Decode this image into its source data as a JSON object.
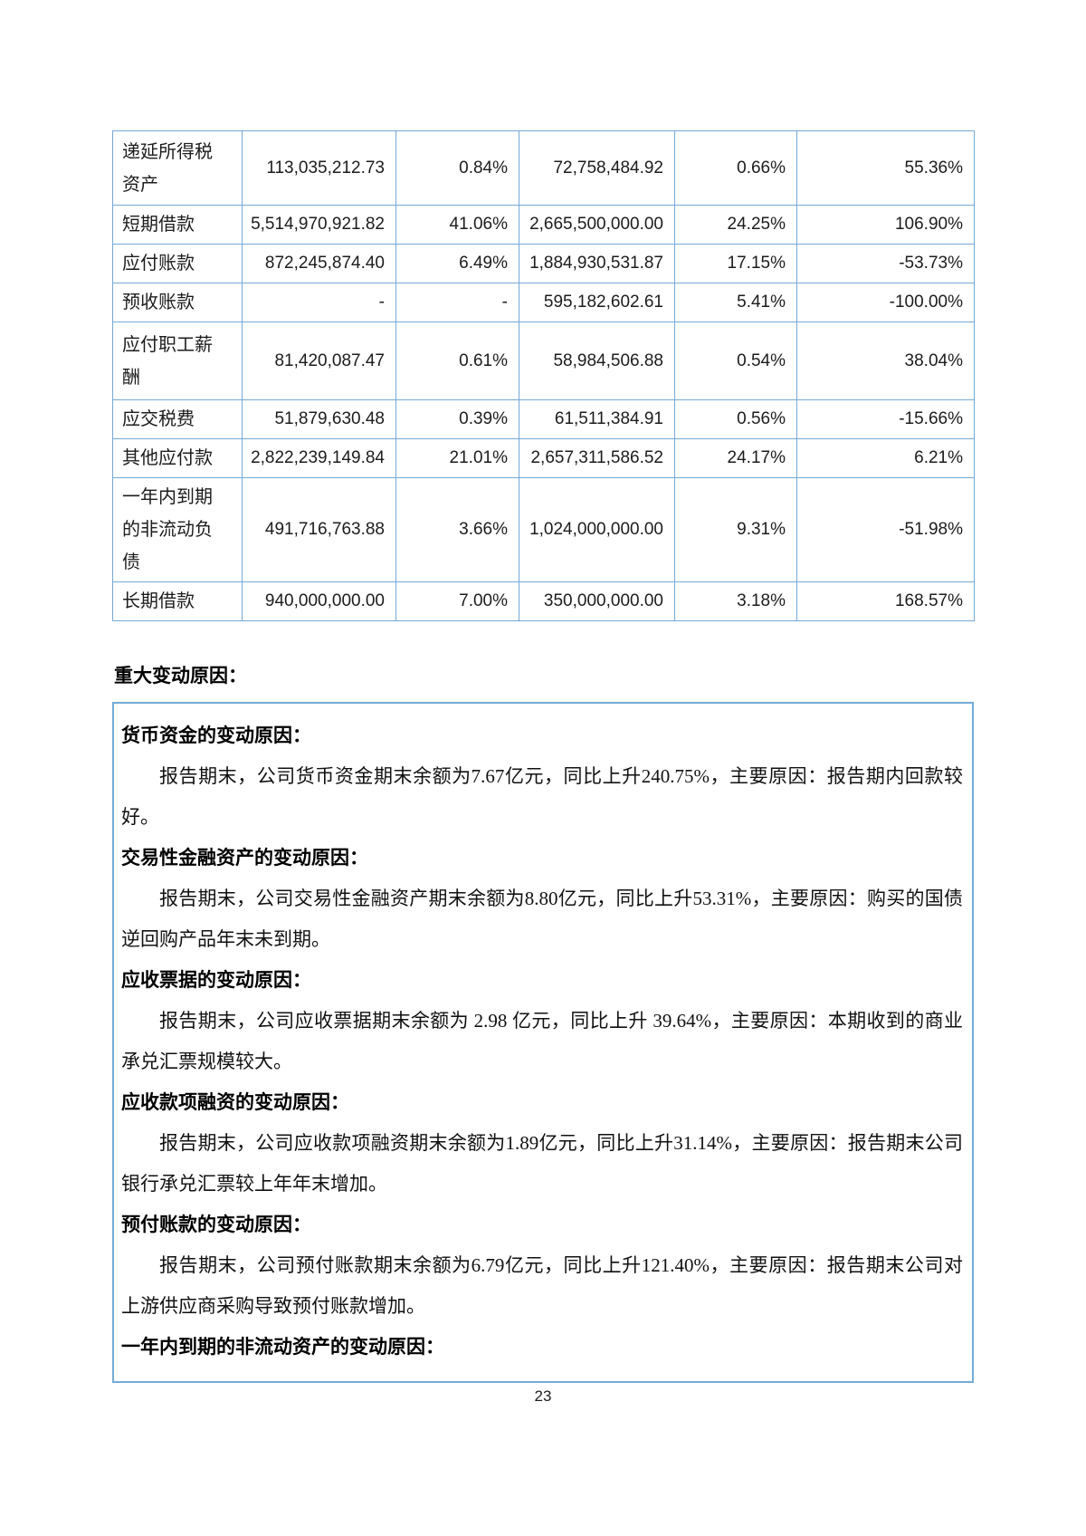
{
  "colors": {
    "table_border": "#74a9d8",
    "box_border": "#72abd6"
  },
  "table": {
    "rows": [
      {
        "cells": [
          "递延所得税资产",
          "113,035,212.73",
          "0.84%",
          "72,758,484.92",
          "0.66%",
          "55.36%"
        ]
      },
      {
        "cells": [
          "短期借款",
          "5,514,970,921.82",
          "41.06%",
          "2,665,500,000.00",
          "24.25%",
          "106.90%"
        ]
      },
      {
        "cells": [
          "应付账款",
          "872,245,874.40",
          "6.49%",
          "1,884,930,531.87",
          "17.15%",
          "-53.73%"
        ]
      },
      {
        "cells": [
          "预收账款",
          "-",
          "-",
          "595,182,602.61",
          "5.41%",
          "-100.00%"
        ]
      },
      {
        "cells": [
          "应付职工薪酬",
          "81,420,087.47",
          "0.61%",
          "58,984,506.88",
          "0.54%",
          "38.04%"
        ]
      },
      {
        "cells": [
          "应交税费",
          "51,879,630.48",
          "0.39%",
          "61,511,384.91",
          "0.56%",
          "-15.66%"
        ]
      },
      {
        "cells": [
          "其他应付款",
          "2,822,239,149.84",
          "21.01%",
          "2,657,311,586.52",
          "24.17%",
          "6.21%"
        ]
      },
      {
        "cells": [
          "一年内到期的非流动负债",
          "491,716,763.88",
          "3.66%",
          "1,024,000,000.00",
          "9.31%",
          "-51.98%"
        ]
      },
      {
        "cells": [
          "长期借款",
          "940,000,000.00",
          "7.00%",
          "350,000,000.00",
          "3.18%",
          "168.57%"
        ]
      }
    ]
  },
  "section": {
    "heading": "重大变动原因："
  },
  "reasons": {
    "blocks": [
      {
        "type": "heading",
        "text": "货币资金的变动原因："
      },
      {
        "type": "para",
        "text": "报告期末，公司货币资金期末余额为7.67亿元，同比上升240.75%，主要原因：报告期内回款较好。"
      },
      {
        "type": "heading",
        "text": "交易性金融资产的变动原因："
      },
      {
        "type": "para",
        "text": "报告期末，公司交易性金融资产期末余额为8.80亿元，同比上升53.31%，主要原因：购买的国债逆回购产品年末未到期。"
      },
      {
        "type": "heading",
        "text": "应收票据的变动原因："
      },
      {
        "type": "para",
        "text": "报告期末，公司应收票据期末余额为 2.98 亿元，同比上升 39.64%，主要原因：本期收到的商业承兑汇票规模较大。"
      },
      {
        "type": "heading",
        "text": "应收款项融资的变动原因："
      },
      {
        "type": "para",
        "text": "报告期末，公司应收款项融资期末余额为1.89亿元，同比上升31.14%，主要原因：报告期末公司银行承兑汇票较上年年末增加。"
      },
      {
        "type": "heading",
        "text": "预付账款的变动原因："
      },
      {
        "type": "para",
        "text": "报告期末，公司预付账款期末余额为6.79亿元，同比上升121.40%，主要原因：报告期末公司对上游供应商采购导致预付账款增加。"
      },
      {
        "type": "heading",
        "text": "一年内到期的非流动资产的变动原因："
      }
    ]
  },
  "footer": {
    "page_number": "23"
  }
}
